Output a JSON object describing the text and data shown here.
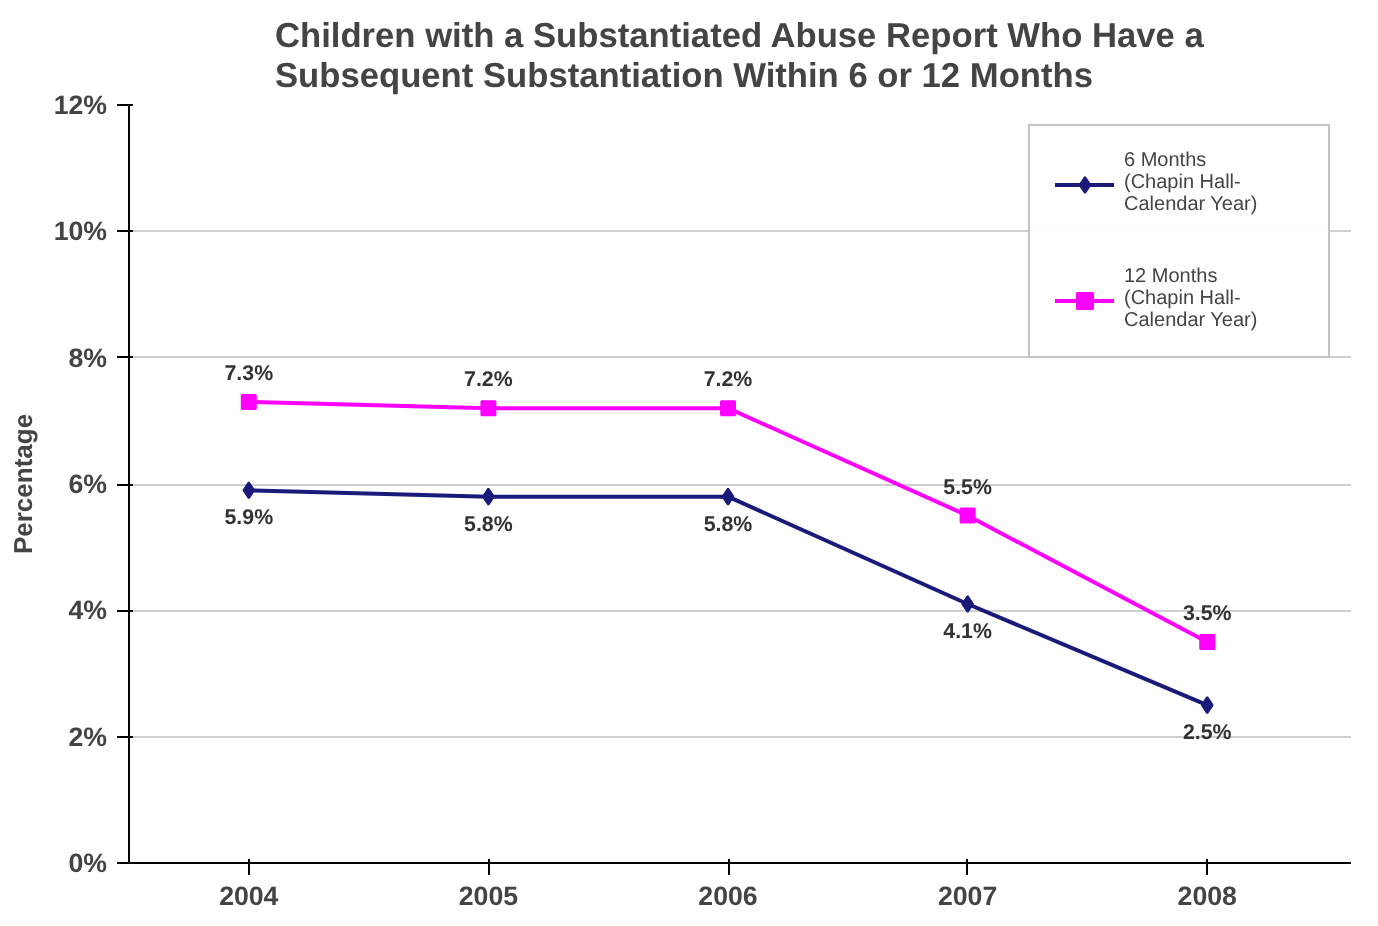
{
  "chart_data": {
    "type": "line",
    "title": "Children with a Substantiated Abuse Report Who Have a\nSubsequent Substantiation Within 6 or 12 Months",
    "ylabel": "Percentage",
    "categories": [
      "2004",
      "2005",
      "2006",
      "2007",
      "2008"
    ],
    "series": [
      {
        "name": "6 Months (Chapin Hall-Calendar Year)",
        "color": "#1a1a7a",
        "marker": "diamond",
        "values": [
          5.9,
          5.8,
          5.8,
          4.1,
          2.5
        ],
        "value_labels": [
          "5.9%",
          "5.8%",
          "5.8%",
          "4.1%",
          "2.5%"
        ]
      },
      {
        "name": "12 Months (Chapin Hall-Calendar Year)",
        "color": "#ff00ff",
        "marker": "square",
        "values": [
          7.3,
          7.2,
          7.2,
          5.5,
          3.5
        ],
        "value_labels": [
          "7.3%",
          "7.2%",
          "7.2%",
          "5.5%",
          "3.5%"
        ]
      }
    ],
    "ylim": [
      0,
      12
    ],
    "yticks": [
      {
        "value": 0,
        "label": "0%"
      },
      {
        "value": 2,
        "label": "2%"
      },
      {
        "value": 4,
        "label": "4%"
      },
      {
        "value": 6,
        "label": "6%"
      },
      {
        "value": 8,
        "label": "8%"
      },
      {
        "value": 10,
        "label": "10%"
      },
      {
        "value": 12,
        "label": "12%"
      }
    ],
    "grid": "y",
    "legend": "top right",
    "line_style": "solid"
  }
}
